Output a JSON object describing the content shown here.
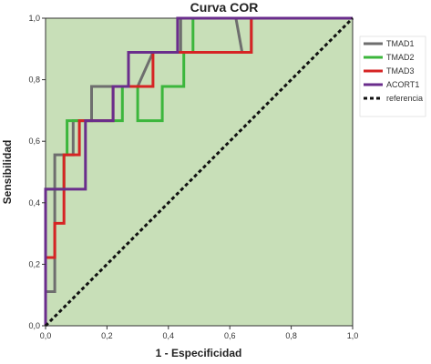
{
  "chart_data": {
    "type": "line",
    "title": "Curva COR",
    "xlabel": "1 - Especificidad",
    "ylabel": "Sensibilidad",
    "xlim": [
      0,
      1
    ],
    "ylim": [
      0,
      1
    ],
    "xticks": [
      "0,0",
      "0,2",
      "0,4",
      "0,6",
      "0,8",
      "1,0"
    ],
    "yticks": [
      "0,0",
      "0,2",
      "0,4",
      "0,6",
      "0,8",
      "1,0"
    ],
    "grid": false,
    "legend_position": "right",
    "plot_background": "#c8dfb8",
    "series": [
      {
        "name": "TMAD1",
        "color": "#6e6e6e",
        "dash": "solid",
        "points": [
          [
            0,
            0
          ],
          [
            0,
            0.111
          ],
          [
            0.03,
            0.111
          ],
          [
            0.03,
            0.556
          ],
          [
            0.09,
            0.556
          ],
          [
            0.09,
            0.667
          ],
          [
            0.15,
            0.667
          ],
          [
            0.15,
            0.778
          ],
          [
            0.3,
            0.778
          ],
          [
            0.35,
            0.889
          ],
          [
            0.44,
            0.889
          ],
          [
            0.44,
            1.0
          ],
          [
            0.62,
            1.0
          ],
          [
            0.64,
            0.889
          ],
          [
            0.67,
            0.889
          ],
          [
            0.67,
            1.0
          ],
          [
            1.0,
            1.0
          ]
        ]
      },
      {
        "name": "TMAD2",
        "color": "#3cb63c",
        "dash": "solid",
        "points": [
          [
            0,
            0
          ],
          [
            0,
            0.444
          ],
          [
            0.06,
            0.444
          ],
          [
            0.06,
            0.556
          ],
          [
            0.07,
            0.556
          ],
          [
            0.07,
            0.667
          ],
          [
            0.25,
            0.667
          ],
          [
            0.25,
            0.778
          ],
          [
            0.3,
            0.778
          ],
          [
            0.3,
            0.667
          ],
          [
            0.38,
            0.667
          ],
          [
            0.38,
            0.778
          ],
          [
            0.45,
            0.778
          ],
          [
            0.45,
            0.889
          ],
          [
            0.48,
            0.889
          ],
          [
            0.48,
            1.0
          ],
          [
            1.0,
            1.0
          ]
        ]
      },
      {
        "name": "TMAD3",
        "color": "#d62424",
        "dash": "solid",
        "points": [
          [
            0,
            0
          ],
          [
            0,
            0.222
          ],
          [
            0.03,
            0.222
          ],
          [
            0.03,
            0.333
          ],
          [
            0.06,
            0.333
          ],
          [
            0.06,
            0.556
          ],
          [
            0.11,
            0.556
          ],
          [
            0.11,
            0.667
          ],
          [
            0.22,
            0.667
          ],
          [
            0.22,
            0.778
          ],
          [
            0.35,
            0.778
          ],
          [
            0.35,
            0.889
          ],
          [
            0.67,
            0.889
          ],
          [
            0.67,
            1.0
          ],
          [
            1.0,
            1.0
          ]
        ]
      },
      {
        "name": "ACORT1",
        "color": "#6a2d8c",
        "dash": "solid",
        "points": [
          [
            0,
            0
          ],
          [
            0,
            0.444
          ],
          [
            0.13,
            0.444
          ],
          [
            0.13,
            0.667
          ],
          [
            0.22,
            0.667
          ],
          [
            0.22,
            0.778
          ],
          [
            0.27,
            0.778
          ],
          [
            0.27,
            0.889
          ],
          [
            0.43,
            0.889
          ],
          [
            0.43,
            1.0
          ],
          [
            1.0,
            1.0
          ]
        ]
      },
      {
        "name": "referencia",
        "color": "#111111",
        "dash": "dashed",
        "points": [
          [
            0,
            0
          ],
          [
            1,
            1
          ]
        ]
      }
    ]
  }
}
